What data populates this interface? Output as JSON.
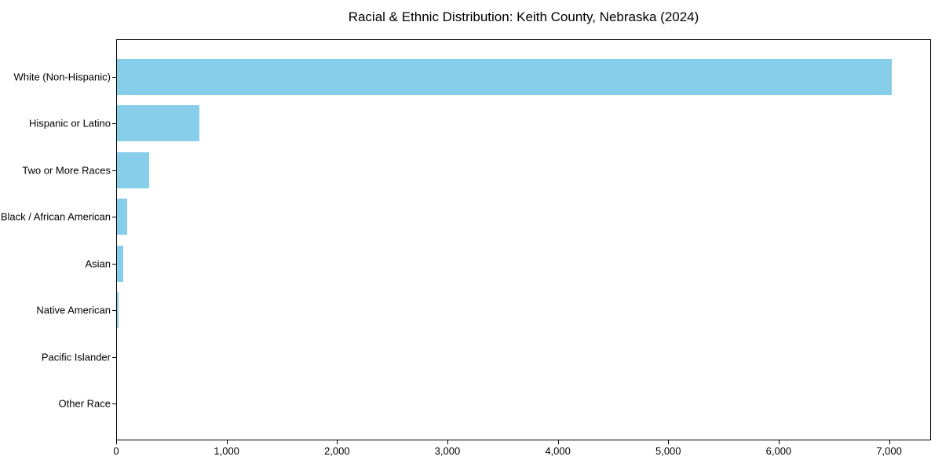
{
  "title": "Racial & Ethnic Distribution: Keith County, Nebraska (2024)",
  "chart_data": {
    "type": "bar",
    "orientation": "horizontal",
    "title": "Racial & Ethnic Distribution: Keith County, Nebraska (2024)",
    "xlabel": "",
    "ylabel": "",
    "categories": [
      "White (Non-Hispanic)",
      "Hispanic or Latino",
      "Two or More Races",
      "Black / African American",
      "Asian",
      "Native American",
      "Pacific Islander",
      "Other Race"
    ],
    "values": [
      7020,
      750,
      290,
      95,
      60,
      12,
      0,
      0
    ],
    "xlim": [
      0,
      7380
    ],
    "x_ticks": [
      0,
      1000,
      2000,
      3000,
      4000,
      5000,
      6000,
      7000
    ],
    "x_tick_labels": [
      "0",
      "1,000",
      "2,000",
      "3,000",
      "4,000",
      "5,000",
      "6,000",
      "7,000"
    ],
    "grid": false,
    "legend": null,
    "bar_color": "#87ceeb"
  },
  "colors": {
    "bar": "#87ceeb",
    "axis": "#000000",
    "text": "#000000",
    "background": "#ffffff"
  }
}
